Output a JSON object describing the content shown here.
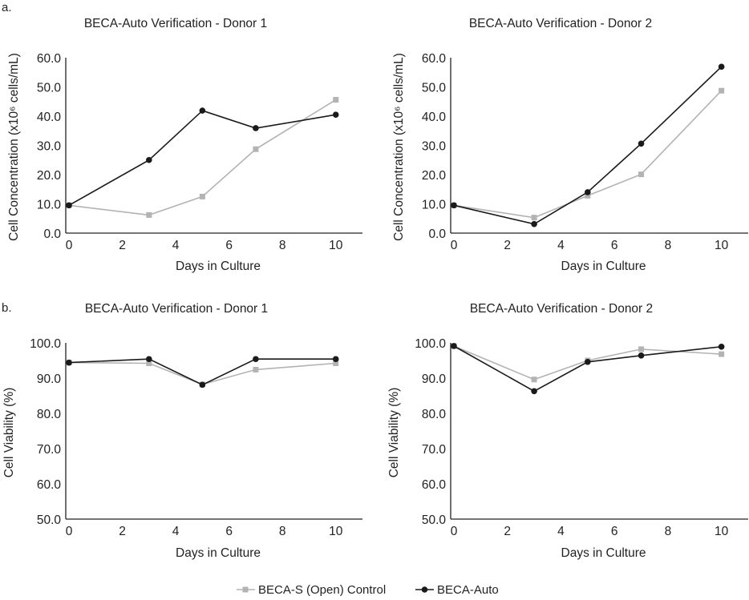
{
  "panel_labels": [
    "a.",
    "b."
  ],
  "legend": [
    {
      "label": "BECA-S (Open) Control",
      "color": "#b3b3b3",
      "marker": "square"
    },
    {
      "label": "BECA-Auto",
      "color": "#1a1a1a",
      "marker": "circle"
    }
  ],
  "chart_data": [
    {
      "type": "line",
      "title": "BECA-Auto Verification - Donor 1",
      "xlabel": "Days in Culture",
      "ylabel": "Cell Concentration (x10⁶ cells/mL)",
      "xlim": [
        0,
        11
      ],
      "ylim": [
        0,
        60
      ],
      "xticks": [
        0,
        2,
        4,
        6,
        8,
        10
      ],
      "yticks": [
        "0.0",
        "10.0",
        "20.0",
        "30.0",
        "40.0",
        "50.0",
        "60.0"
      ],
      "series": [
        {
          "name": "BECA-S (Open) Control",
          "x": [
            0,
            3,
            5,
            7,
            10
          ],
          "values": [
            9.5,
            6.2,
            12.5,
            28.7,
            45.6
          ]
        },
        {
          "name": "BECA-Auto",
          "x": [
            0,
            3,
            5,
            7,
            10
          ],
          "values": [
            9.5,
            25.0,
            41.9,
            35.9,
            40.5
          ]
        }
      ]
    },
    {
      "type": "line",
      "title": "BECA-Auto Verification - Donor 2",
      "xlabel": "Days in Culture",
      "ylabel": "Cell Concentration (x10⁶ cells/mL)",
      "xlim": [
        0,
        11
      ],
      "ylim": [
        0,
        60
      ],
      "xticks": [
        0,
        2,
        4,
        6,
        8,
        10
      ],
      "yticks": [
        "0.0",
        "10.0",
        "20.0",
        "30.0",
        "40.0",
        "50.0",
        "60.0"
      ],
      "series": [
        {
          "name": "BECA-S (Open) Control",
          "x": [
            0,
            3,
            5,
            7,
            10
          ],
          "values": [
            9.5,
            5.3,
            12.8,
            20.1,
            48.7
          ]
        },
        {
          "name": "BECA-Auto",
          "x": [
            0,
            3,
            5,
            7,
            10
          ],
          "values": [
            9.5,
            3.1,
            14.0,
            30.6,
            56.9
          ]
        }
      ]
    },
    {
      "type": "line",
      "title": "BECA-Auto Verification - Donor 1",
      "xlabel": "Days in Culture",
      "ylabel": "Cell Viability (%)",
      "xlim": [
        0,
        11
      ],
      "ylim": [
        50,
        100
      ],
      "xticks": [
        0,
        2,
        4,
        6,
        8,
        10
      ],
      "yticks": [
        "50.0",
        "60.0",
        "70.0",
        "80.0",
        "90.0",
        "100.0"
      ],
      "series": [
        {
          "name": "BECA-S (Open) Control",
          "x": [
            0,
            3,
            5,
            7,
            10
          ],
          "values": [
            94.4,
            94.2,
            88.2,
            92.4,
            94.2
          ]
        },
        {
          "name": "BECA-Auto",
          "x": [
            0,
            3,
            5,
            7,
            10
          ],
          "values": [
            94.4,
            95.4,
            88.1,
            95.4,
            95.4
          ]
        }
      ]
    },
    {
      "type": "line",
      "title": "BECA-Auto Verification - Donor 2",
      "xlabel": "Days in Culture",
      "ylabel": "Cell Viability (%)",
      "xlim": [
        0,
        11
      ],
      "ylim": [
        50,
        100
      ],
      "xticks": [
        0,
        2,
        4,
        6,
        8,
        10
      ],
      "yticks": [
        "50.0",
        "60.0",
        "70.0",
        "80.0",
        "90.0",
        "100.0"
      ],
      "series": [
        {
          "name": "BECA-S (Open) Control",
          "x": [
            0,
            3,
            5,
            7,
            10
          ],
          "values": [
            99.1,
            89.6,
            95.0,
            98.2,
            96.8
          ]
        },
        {
          "name": "BECA-Auto",
          "x": [
            0,
            3,
            5,
            7,
            10
          ],
          "values": [
            99.1,
            86.3,
            94.6,
            96.4,
            98.9
          ]
        }
      ]
    }
  ]
}
